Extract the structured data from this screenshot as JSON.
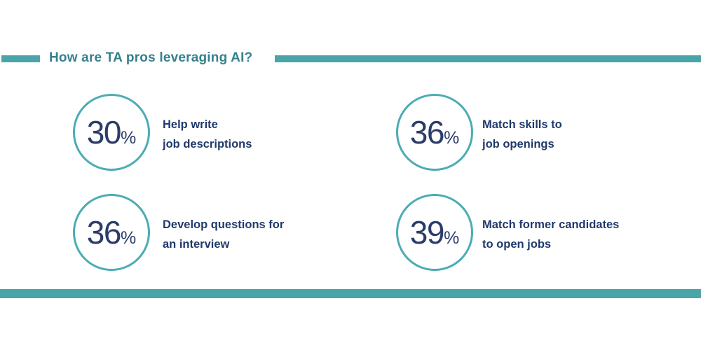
{
  "title": "How are TA pros leveraging AI?",
  "colors": {
    "teal_bar": "#4AA5AB",
    "teal_title": "#35818D",
    "circle_stroke": "#4BACB4",
    "navy_label": "#1F3A6B",
    "navy_number": "#2B3C68"
  },
  "stats": [
    {
      "value": "30",
      "unit": "%",
      "label_line1": "Help write",
      "label_line2": "job descriptions"
    },
    {
      "value": "36",
      "unit": "%",
      "label_line1": "Match skills to",
      "label_line2": "job openings"
    },
    {
      "value": "36",
      "unit": "%",
      "label_line1": "Develop questions for",
      "label_line2": "an interview"
    },
    {
      "value": "39",
      "unit": "%",
      "label_line1": "Match former candidates",
      "label_line2": "to open jobs"
    }
  ],
  "chart_data": {
    "type": "bar",
    "title": "How are TA pros leveraging AI?",
    "categories": [
      "Help write job descriptions",
      "Match skills to job openings",
      "Develop questions for an interview",
      "Match former candidates to open jobs"
    ],
    "values": [
      30,
      36,
      36,
      39
    ],
    "unit": "%",
    "xlabel": "",
    "ylabel": "",
    "ylim": [
      0,
      100
    ],
    "layout": "stat-infographic, 2x2 grid of outlined circles with labels"
  }
}
